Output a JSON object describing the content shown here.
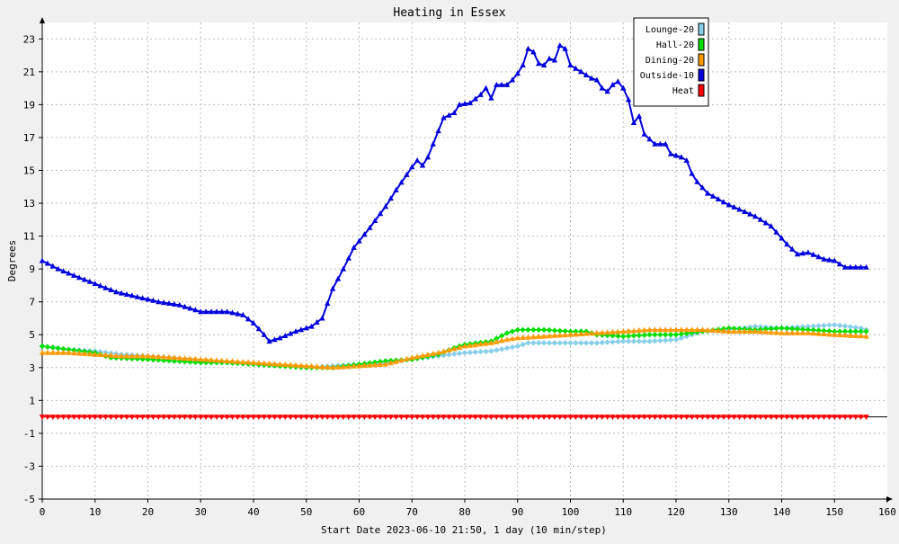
{
  "chart_data": {
    "type": "line",
    "title": "Heating in Essex",
    "xlabel": "Start Date 2023-06-10 21:50, 1 day (10 min/step)",
    "ylabel": "Degrees",
    "xlim": [
      0,
      160
    ],
    "ylim": [
      -5,
      24
    ],
    "x_ticks": [
      0,
      10,
      20,
      30,
      40,
      50,
      60,
      70,
      80,
      90,
      100,
      110,
      120,
      130,
      140,
      150,
      160
    ],
    "y_ticks": [
      -5,
      -3,
      -1,
      1,
      3,
      5,
      7,
      9,
      11,
      13,
      15,
      17,
      19,
      21,
      23
    ],
    "grid": true,
    "legend_position": "top-right",
    "series": [
      {
        "name": "Lounge-20",
        "color": "#87ceeb",
        "marker": "diamond",
        "points": [
          [
            0,
            4.3
          ],
          [
            5,
            4.1
          ],
          [
            10,
            4.0
          ],
          [
            15,
            3.8
          ],
          [
            20,
            3.7
          ],
          [
            25,
            3.6
          ],
          [
            30,
            3.4
          ],
          [
            35,
            3.3
          ],
          [
            40,
            3.2
          ],
          [
            45,
            3.1
          ],
          [
            50,
            3.0
          ],
          [
            55,
            3.1
          ],
          [
            60,
            3.2
          ],
          [
            65,
            3.3
          ],
          [
            70,
            3.5
          ],
          [
            75,
            3.7
          ],
          [
            80,
            3.9
          ],
          [
            85,
            4.0
          ],
          [
            90,
            4.3
          ],
          [
            92,
            4.5
          ],
          [
            95,
            4.5
          ],
          [
            100,
            4.5
          ],
          [
            105,
            4.5
          ],
          [
            110,
            4.6
          ],
          [
            115,
            4.6
          ],
          [
            120,
            4.7
          ],
          [
            125,
            5.2
          ],
          [
            130,
            5.3
          ],
          [
            135,
            5.5
          ],
          [
            140,
            5.4
          ],
          [
            145,
            5.5
          ],
          [
            150,
            5.6
          ],
          [
            155,
            5.4
          ],
          [
            156,
            5.3
          ]
        ]
      },
      {
        "name": "Hall-20",
        "color": "#00dd00",
        "marker": "diamond",
        "points": [
          [
            0,
            4.3
          ],
          [
            5,
            4.1
          ],
          [
            10,
            3.9
          ],
          [
            13,
            3.6
          ],
          [
            20,
            3.5
          ],
          [
            25,
            3.4
          ],
          [
            30,
            3.3
          ],
          [
            35,
            3.3
          ],
          [
            40,
            3.2
          ],
          [
            45,
            3.1
          ],
          [
            50,
            3.0
          ],
          [
            55,
            3.0
          ],
          [
            60,
            3.2
          ],
          [
            65,
            3.4
          ],
          [
            70,
            3.5
          ],
          [
            75,
            3.8
          ],
          [
            78,
            4.2
          ],
          [
            80,
            4.4
          ],
          [
            85,
            4.6
          ],
          [
            88,
            5.1
          ],
          [
            90,
            5.3
          ],
          [
            95,
            5.3
          ],
          [
            100,
            5.2
          ],
          [
            103,
            5.2
          ],
          [
            105,
            5.0
          ],
          [
            110,
            4.9
          ],
          [
            115,
            5.0
          ],
          [
            120,
            5.0
          ],
          [
            125,
            5.2
          ],
          [
            130,
            5.4
          ],
          [
            135,
            5.3
          ],
          [
            140,
            5.4
          ],
          [
            145,
            5.3
          ],
          [
            150,
            5.2
          ],
          [
            156,
            5.2
          ]
        ]
      },
      {
        "name": "Dining-20",
        "color": "#ff9900",
        "marker": "triangle-up",
        "points": [
          [
            0,
            3.9
          ],
          [
            5,
            3.9
          ],
          [
            10,
            3.8
          ],
          [
            15,
            3.7
          ],
          [
            20,
            3.7
          ],
          [
            25,
            3.6
          ],
          [
            30,
            3.5
          ],
          [
            35,
            3.4
          ],
          [
            40,
            3.3
          ],
          [
            45,
            3.2
          ],
          [
            50,
            3.1
          ],
          [
            55,
            3.0
          ],
          [
            60,
            3.1
          ],
          [
            65,
            3.2
          ],
          [
            70,
            3.6
          ],
          [
            75,
            3.9
          ],
          [
            80,
            4.3
          ],
          [
            85,
            4.5
          ],
          [
            88,
            4.7
          ],
          [
            90,
            4.8
          ],
          [
            95,
            4.9
          ],
          [
            100,
            5.0
          ],
          [
            105,
            5.1
          ],
          [
            110,
            5.2
          ],
          [
            115,
            5.3
          ],
          [
            120,
            5.3
          ],
          [
            125,
            5.3
          ],
          [
            130,
            5.2
          ],
          [
            135,
            5.2
          ],
          [
            140,
            5.1
          ],
          [
            145,
            5.1
          ],
          [
            150,
            5.0
          ],
          [
            156,
            4.9
          ]
        ]
      },
      {
        "name": "Outside-10",
        "color": "#0000dd",
        "marker": "triangle-up",
        "points": [
          [
            0,
            9.5
          ],
          [
            3,
            9.0
          ],
          [
            6,
            8.6
          ],
          [
            10,
            8.1
          ],
          [
            14,
            7.6
          ],
          [
            18,
            7.3
          ],
          [
            22,
            7.0
          ],
          [
            26,
            6.8
          ],
          [
            30,
            6.4
          ],
          [
            35,
            6.4
          ],
          [
            38,
            6.2
          ],
          [
            40,
            5.7
          ],
          [
            42,
            5.0
          ],
          [
            43,
            4.6
          ],
          [
            45,
            4.8
          ],
          [
            48,
            5.2
          ],
          [
            51,
            5.5
          ],
          [
            53,
            6.0
          ],
          [
            55,
            7.8
          ],
          [
            57,
            9.0
          ],
          [
            59,
            10.3
          ],
          [
            62,
            11.5
          ],
          [
            65,
            12.8
          ],
          [
            67,
            13.8
          ],
          [
            70,
            15.2
          ],
          [
            71,
            15.6
          ],
          [
            72,
            15.3
          ],
          [
            73,
            15.8
          ],
          [
            75,
            17.4
          ],
          [
            76,
            18.2
          ],
          [
            78,
            18.5
          ],
          [
            79,
            19.0
          ],
          [
            81,
            19.1
          ],
          [
            83,
            19.6
          ],
          [
            84,
            20.0
          ],
          [
            85,
            19.4
          ],
          [
            86,
            20.2
          ],
          [
            88,
            20.2
          ],
          [
            89,
            20.5
          ],
          [
            90,
            20.9
          ],
          [
            91,
            21.4
          ],
          [
            92,
            22.4
          ],
          [
            93,
            22.2
          ],
          [
            94,
            21.5
          ],
          [
            95,
            21.4
          ],
          [
            96,
            21.8
          ],
          [
            97,
            21.7
          ],
          [
            98,
            22.6
          ],
          [
            99,
            22.4
          ],
          [
            100,
            21.4
          ],
          [
            102,
            21.0
          ],
          [
            104,
            20.6
          ],
          [
            105,
            20.5
          ],
          [
            106,
            20.0
          ],
          [
            107,
            19.8
          ],
          [
            108,
            20.2
          ],
          [
            109,
            20.4
          ],
          [
            110,
            20.0
          ],
          [
            111,
            19.3
          ],
          [
            112,
            17.9
          ],
          [
            113,
            18.3
          ],
          [
            114,
            17.2
          ],
          [
            116,
            16.6
          ],
          [
            118,
            16.6
          ],
          [
            119,
            16.0
          ],
          [
            121,
            15.8
          ],
          [
            122,
            15.6
          ],
          [
            123,
            14.8
          ],
          [
            124,
            14.3
          ],
          [
            126,
            13.6
          ],
          [
            130,
            12.9
          ],
          [
            135,
            12.2
          ],
          [
            138,
            11.6
          ],
          [
            141,
            10.5
          ],
          [
            143,
            9.9
          ],
          [
            145,
            10.0
          ],
          [
            148,
            9.6
          ],
          [
            150,
            9.5
          ],
          [
            152,
            9.1
          ],
          [
            154,
            9.1
          ],
          [
            156,
            9.1
          ]
        ]
      },
      {
        "name": "Heat",
        "color": "#ff0000",
        "marker": "triangle-down",
        "points": [
          [
            0,
            0
          ],
          [
            156,
            0
          ]
        ]
      }
    ]
  }
}
